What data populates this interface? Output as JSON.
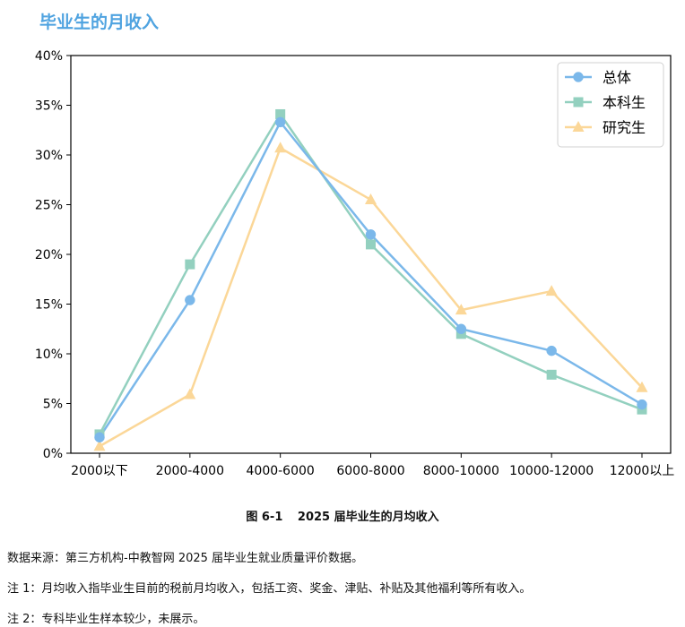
{
  "section_title": "毕业生的月收入",
  "chart_data": {
    "type": "line",
    "title": "",
    "xlabel": "",
    "ylabel": "",
    "categories": [
      "2000以下",
      "2000-4000",
      "4000-6000",
      "6000-8000",
      "8000-10000",
      "10000-12000",
      "12000以上"
    ],
    "ylim": [
      0,
      40
    ],
    "yticks": [
      0,
      5,
      10,
      15,
      20,
      25,
      30,
      35,
      40
    ],
    "ytick_labels": [
      "0%",
      "5%",
      "10%",
      "15%",
      "20%",
      "25%",
      "30%",
      "35%",
      "40%"
    ],
    "grid": false,
    "legend_position": "top-right",
    "series": [
      {
        "name": "总体",
        "marker": "circle",
        "color": "#7bb8ea",
        "values": [
          1.6,
          15.4,
          33.3,
          22.0,
          12.5,
          10.3,
          4.9
        ]
      },
      {
        "name": "本科生",
        "marker": "square",
        "color": "#93d0bf",
        "values": [
          1.9,
          19.0,
          34.1,
          21.0,
          12.0,
          7.9,
          4.4
        ]
      },
      {
        "name": "研究生",
        "marker": "triangle",
        "color": "#fbd798",
        "values": [
          0.7,
          5.9,
          30.7,
          25.5,
          14.4,
          16.3,
          6.6
        ]
      }
    ]
  },
  "figure_caption": {
    "number": "图 6-1",
    "text": "2025 届毕业生的月均收入"
  },
  "notes": [
    "数据来源：第三方机构-中教智网 2025 届毕业生就业质量评价数据。",
    "注 1：月均收入指毕业生目前的税前月均收入，包括工资、奖金、津贴、补贴及其他福利等所有收入。",
    "注 2：专科毕业生样本较少，未展示。"
  ]
}
